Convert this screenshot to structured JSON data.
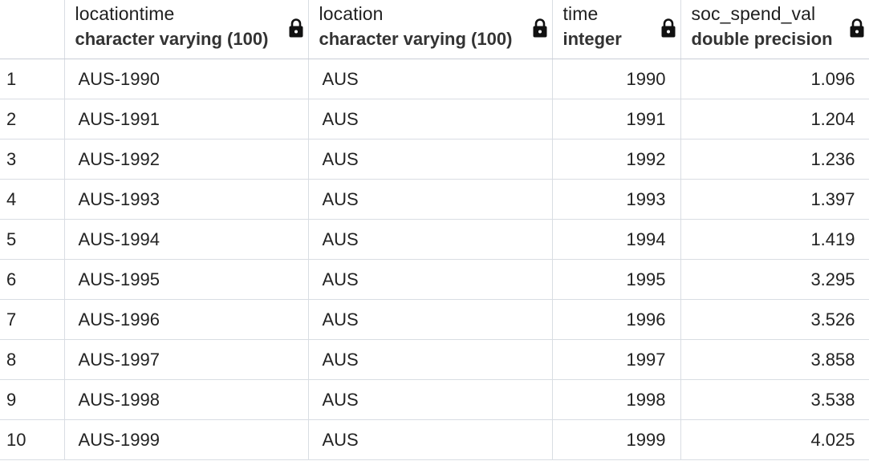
{
  "columns": [
    {
      "name": "locationtime",
      "type": "character varying (100)",
      "icon": "lock-icon"
    },
    {
      "name": "location",
      "type": "character varying (100)",
      "icon": "lock-icon"
    },
    {
      "name": "time",
      "type": "integer",
      "icon": "lock-icon"
    },
    {
      "name": "soc_spend_val",
      "type": "double precision",
      "icon": "lock-icon"
    }
  ],
  "rows": [
    {
      "num": "1",
      "locationtime": "AUS-1990",
      "location": "AUS",
      "time": "1990",
      "soc_spend_val": "1.096"
    },
    {
      "num": "2",
      "locationtime": "AUS-1991",
      "location": "AUS",
      "time": "1991",
      "soc_spend_val": "1.204"
    },
    {
      "num": "3",
      "locationtime": "AUS-1992",
      "location": "AUS",
      "time": "1992",
      "soc_spend_val": "1.236"
    },
    {
      "num": "4",
      "locationtime": "AUS-1993",
      "location": "AUS",
      "time": "1993",
      "soc_spend_val": "1.397"
    },
    {
      "num": "5",
      "locationtime": "AUS-1994",
      "location": "AUS",
      "time": "1994",
      "soc_spend_val": "1.419"
    },
    {
      "num": "6",
      "locationtime": "AUS-1995",
      "location": "AUS",
      "time": "1995",
      "soc_spend_val": "3.295"
    },
    {
      "num": "7",
      "locationtime": "AUS-1996",
      "location": "AUS",
      "time": "1996",
      "soc_spend_val": "3.526"
    },
    {
      "num": "8",
      "locationtime": "AUS-1997",
      "location": "AUS",
      "time": "1997",
      "soc_spend_val": "3.858"
    },
    {
      "num": "9",
      "locationtime": "AUS-1998",
      "location": "AUS",
      "time": "1998",
      "soc_spend_val": "3.538"
    },
    {
      "num": "10",
      "locationtime": "AUS-1999",
      "location": "AUS",
      "time": "1999",
      "soc_spend_val": "4.025"
    }
  ]
}
